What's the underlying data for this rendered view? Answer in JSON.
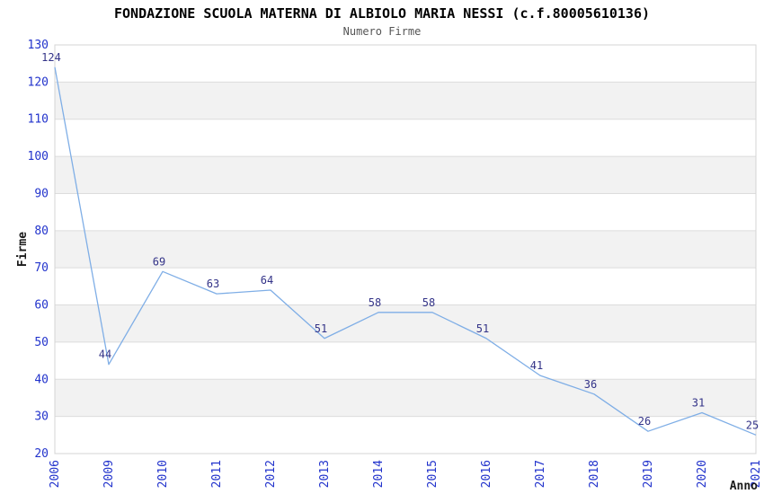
{
  "chart_data": {
    "type": "line",
    "title": "FONDAZIONE SCUOLA MATERNA DI ALBIOLO MARIA NESSI (c.f.80005610136)",
    "subtitle": "Numero Firme",
    "categories": [
      "2006",
      "2009",
      "2010",
      "2011",
      "2012",
      "2013",
      "2014",
      "2015",
      "2016",
      "2017",
      "2018",
      "2019",
      "2020",
      "2021"
    ],
    "values": [
      124,
      44,
      69,
      63,
      64,
      51,
      58,
      58,
      51,
      41,
      36,
      26,
      31,
      25
    ],
    "xlabel": "Anno",
    "ylabel": "Firme",
    "ylim": [
      20,
      130
    ],
    "ytick_step": 10,
    "yticks": [
      20,
      30,
      40,
      50,
      60,
      70,
      80,
      90,
      100,
      110,
      120,
      130
    ],
    "grid": "horizontal-bands-alternating",
    "legend": "none",
    "data_labels_shown": true,
    "colors": {
      "line": "#7faee6",
      "tick_label": "#2233cc",
      "data_label": "#333388",
      "band_gray": "#f2f2f2",
      "grid_line": "#dcdcdc",
      "plot_border": "#d4d4d4",
      "title": "#000000",
      "subtitle": "#555555",
      "axis_name": "#1a1a1a",
      "background": "#ffffff"
    }
  }
}
